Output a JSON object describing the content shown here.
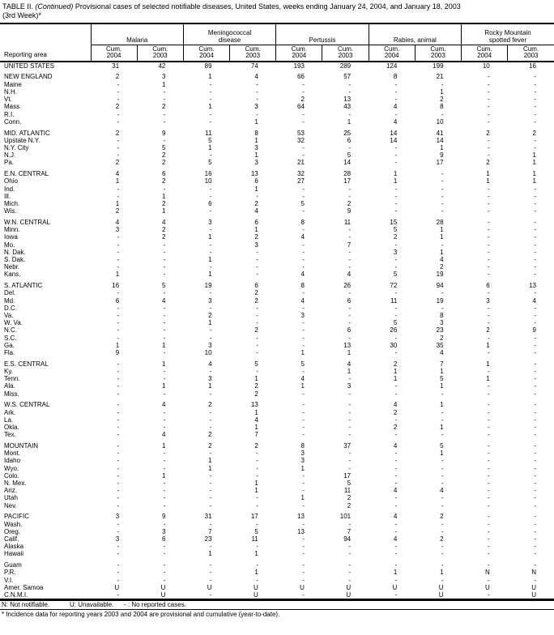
{
  "title": {
    "prefix": "TABLE II.",
    "continued": "(Continued)",
    "rest": "Provisional cases of selected notifiable diseases, United States, weeks ending January 24, 2004, and January 18, 2003",
    "line2": "(3rd Week)*"
  },
  "header": {
    "reporting_area": "Reporting area",
    "groups": [
      {
        "label": "Malaria"
      },
      {
        "label": "Meningococcal disease"
      },
      {
        "label": "Pertussis"
      },
      {
        "label": "Rabies, animal"
      },
      {
        "label": "Rocky Mountain spotted fever"
      }
    ],
    "cum_label": "Cum.",
    "years": [
      "2004",
      "2003",
      "2004",
      "2003",
      "2004",
      "2003",
      "2004",
      "2003",
      "2004",
      "2003"
    ]
  },
  "sections": [
    {
      "rows": [
        {
          "area": "UNITED STATES",
          "values": [
            "31",
            "42",
            "89",
            "74",
            "193",
            "289",
            "124",
            "199",
            "10",
            "16"
          ]
        }
      ]
    },
    {
      "rows": [
        {
          "area": "NEW ENGLAND",
          "values": [
            "2",
            "3",
            "1",
            "4",
            "66",
            "57",
            "8",
            "21",
            "-",
            "-"
          ]
        },
        {
          "area": "Maine",
          "values": [
            "-",
            "1",
            "-",
            "-",
            "-",
            "-",
            "-",
            "-",
            "-",
            "-"
          ]
        },
        {
          "area": "N.H.",
          "values": [
            "-",
            "-",
            "-",
            "-",
            "-",
            "-",
            "-",
            "1",
            "-",
            "-"
          ]
        },
        {
          "area": "Vt.",
          "values": [
            "-",
            "-",
            "-",
            "-",
            "2",
            "13",
            "-",
            "2",
            "-",
            "-"
          ]
        },
        {
          "area": "Mass.",
          "values": [
            "2",
            "2",
            "1",
            "3",
            "64",
            "43",
            "4",
            "8",
            "-",
            "-"
          ]
        },
        {
          "area": "R.I.",
          "values": [
            "-",
            "-",
            "-",
            "-",
            "-",
            "-",
            "-",
            "-",
            "-",
            "-"
          ]
        },
        {
          "area": "Conn.",
          "values": [
            "-",
            "-",
            "-",
            "1",
            "-",
            "1",
            "4",
            "10",
            "-",
            "-"
          ]
        }
      ]
    },
    {
      "rows": [
        {
          "area": "MID. ATLANTIC",
          "values": [
            "2",
            "9",
            "11",
            "8",
            "53",
            "25",
            "14",
            "41",
            "2",
            "2"
          ]
        },
        {
          "area": "Upstate N.Y.",
          "values": [
            "-",
            "-",
            "5",
            "1",
            "32",
            "6",
            "14",
            "14",
            "-",
            "-"
          ]
        },
        {
          "area": "N.Y. City",
          "values": [
            "-",
            "5",
            "1",
            "3",
            "-",
            "-",
            "-",
            "1",
            "-",
            "-"
          ]
        },
        {
          "area": "N.J.",
          "values": [
            "-",
            "2",
            "-",
            "1",
            "-",
            "5",
            "-",
            "9",
            "-",
            "1"
          ]
        },
        {
          "area": "Pa.",
          "values": [
            "2",
            "2",
            "5",
            "3",
            "21",
            "14",
            "-",
            "17",
            "2",
            "1"
          ]
        }
      ]
    },
    {
      "rows": [
        {
          "area": "E.N. CENTRAL",
          "values": [
            "4",
            "6",
            "16",
            "13",
            "32",
            "28",
            "1",
            "-",
            "1",
            "1"
          ]
        },
        {
          "area": "Ohio",
          "values": [
            "1",
            "2",
            "10",
            "6",
            "27",
            "17",
            "1",
            "-",
            "1",
            "1"
          ]
        },
        {
          "area": "Ind.",
          "values": [
            "-",
            "-",
            "-",
            "1",
            "-",
            "-",
            "-",
            "-",
            "-",
            "-"
          ]
        },
        {
          "area": "Ill.",
          "values": [
            "-",
            "1",
            "-",
            "-",
            "-",
            "-",
            "-",
            "-",
            "-",
            "-"
          ]
        },
        {
          "area": "Mich.",
          "values": [
            "1",
            "2",
            "6",
            "2",
            "5",
            "2",
            "-",
            "-",
            "-",
            "-"
          ]
        },
        {
          "area": "Wis.",
          "values": [
            "2",
            "1",
            "-",
            "4",
            "-",
            "9",
            "-",
            "-",
            "-",
            "-"
          ]
        }
      ]
    },
    {
      "rows": [
        {
          "area": "W.N. CENTRAL",
          "values": [
            "4",
            "4",
            "3",
            "6",
            "8",
            "11",
            "15",
            "28",
            "-",
            "-"
          ]
        },
        {
          "area": "Minn.",
          "values": [
            "3",
            "2",
            "-",
            "1",
            "-",
            "-",
            "5",
            "1",
            "-",
            "-"
          ]
        },
        {
          "area": "Iowa",
          "values": [
            "-",
            "2",
            "1",
            "2",
            "4",
            "-",
            "2",
            "1",
            "-",
            "-"
          ]
        },
        {
          "area": "Mo.",
          "values": [
            "-",
            "-",
            "-",
            "3",
            "-",
            "7",
            "-",
            "-",
            "-",
            "-"
          ]
        },
        {
          "area": "N. Dak.",
          "values": [
            "-",
            "-",
            "-",
            "-",
            "-",
            "-",
            "3",
            "1",
            "-",
            "-"
          ]
        },
        {
          "area": "S. Dak.",
          "values": [
            "-",
            "-",
            "1",
            "-",
            "-",
            "-",
            "-",
            "4",
            "-",
            "-"
          ]
        },
        {
          "area": "Nebr.",
          "values": [
            "-",
            "-",
            "-",
            "-",
            "-",
            "-",
            "-",
            "2",
            "-",
            "-"
          ]
        },
        {
          "area": "Kans.",
          "values": [
            "1",
            "-",
            "1",
            "-",
            "4",
            "4",
            "5",
            "19",
            "-",
            "-"
          ]
        }
      ]
    },
    {
      "rows": [
        {
          "area": "S. ATLANTIC",
          "values": [
            "16",
            "5",
            "19",
            "6",
            "8",
            "26",
            "72",
            "94",
            "6",
            "13"
          ]
        },
        {
          "area": "Del.",
          "values": [
            "-",
            "-",
            "-",
            "2",
            "-",
            "-",
            "-",
            "-",
            "-",
            "-"
          ]
        },
        {
          "area": "Md.",
          "values": [
            "6",
            "4",
            "3",
            "2",
            "4",
            "6",
            "11",
            "19",
            "3",
            "4"
          ]
        },
        {
          "area": "D.C.",
          "values": [
            "-",
            "-",
            "-",
            "-",
            "-",
            "-",
            "-",
            "-",
            "-",
            "-"
          ]
        },
        {
          "area": "Va.",
          "values": [
            "-",
            "-",
            "2",
            "-",
            "3",
            "-",
            "-",
            "8",
            "-",
            "-"
          ]
        },
        {
          "area": "W. Va.",
          "values": [
            "-",
            "-",
            "1",
            "-",
            "-",
            "-",
            "5",
            "3",
            "-",
            "-"
          ]
        },
        {
          "area": "N.C.",
          "values": [
            "-",
            "-",
            "-",
            "2",
            "-",
            "6",
            "26",
            "23",
            "2",
            "9"
          ]
        },
        {
          "area": "S.C.",
          "values": [
            "-",
            "-",
            "-",
            "-",
            "-",
            "-",
            "-",
            "2",
            "-",
            "-"
          ]
        },
        {
          "area": "Ga.",
          "values": [
            "1",
            "1",
            "3",
            "-",
            "-",
            "13",
            "30",
            "35",
            "1",
            "-"
          ]
        },
        {
          "area": "Fla.",
          "values": [
            "9",
            "-",
            "10",
            "-",
            "1",
            "1",
            "-",
            "4",
            "-",
            "-"
          ]
        }
      ]
    },
    {
      "rows": [
        {
          "area": "E.S. CENTRAL",
          "values": [
            "-",
            "1",
            "4",
            "5",
            "5",
            "4",
            "2",
            "7",
            "1",
            "-"
          ]
        },
        {
          "area": "Ky.",
          "values": [
            "-",
            "-",
            "-",
            "-",
            "-",
            "1",
            "1",
            "1",
            "-",
            "-"
          ]
        },
        {
          "area": "Tenn.",
          "values": [
            "-",
            "-",
            "3",
            "1",
            "4",
            "-",
            "1",
            "5",
            "1",
            "-"
          ]
        },
        {
          "area": "Ala.",
          "values": [
            "-",
            "1",
            "1",
            "2",
            "1",
            "3",
            "-",
            "1",
            "-",
            "-"
          ]
        },
        {
          "area": "Miss.",
          "values": [
            "-",
            "-",
            "-",
            "2",
            "-",
            "-",
            "-",
            "-",
            "-",
            "-"
          ]
        }
      ]
    },
    {
      "rows": [
        {
          "area": "W.S. CENTRAL",
          "values": [
            "-",
            "4",
            "2",
            "13",
            "-",
            "-",
            "4",
            "1",
            "-",
            "-"
          ]
        },
        {
          "area": "Ark.",
          "values": [
            "-",
            "-",
            "-",
            "1",
            "-",
            "-",
            "2",
            "-",
            "-",
            "-"
          ]
        },
        {
          "area": "La.",
          "values": [
            "-",
            "-",
            "-",
            "4",
            "-",
            "-",
            "-",
            "-",
            "-",
            "-"
          ]
        },
        {
          "area": "Okla.",
          "values": [
            "-",
            "-",
            "-",
            "1",
            "-",
            "-",
            "2",
            "1",
            "-",
            "-"
          ]
        },
        {
          "area": "Tex.",
          "values": [
            "-",
            "4",
            "2",
            "7",
            "-",
            "-",
            "-",
            "-",
            "-",
            "-"
          ]
        }
      ]
    },
    {
      "rows": [
        {
          "area": "MOUNTAIN",
          "values": [
            "-",
            "1",
            "2",
            "2",
            "8",
            "37",
            "4",
            "5",
            "-",
            "-"
          ]
        },
        {
          "area": "Mont.",
          "values": [
            "-",
            "-",
            "-",
            "-",
            "3",
            "-",
            "-",
            "1",
            "-",
            "-"
          ]
        },
        {
          "area": "Idaho",
          "values": [
            "-",
            "-",
            "1",
            "-",
            "3",
            "-",
            "-",
            "-",
            "-",
            "-"
          ]
        },
        {
          "area": "Wyo.",
          "values": [
            "-",
            "-",
            "1",
            "-",
            "1",
            "-",
            "-",
            "-",
            "-",
            "-"
          ]
        },
        {
          "area": "Colo.",
          "values": [
            "-",
            "1",
            "-",
            "-",
            "-",
            "17",
            "-",
            "-",
            "-",
            "-"
          ]
        },
        {
          "area": "N. Mex.",
          "values": [
            "-",
            "-",
            "-",
            "1",
            "-",
            "5",
            "-",
            "-",
            "-",
            "-"
          ]
        },
        {
          "area": "Ariz.",
          "values": [
            "-",
            "-",
            "-",
            "1",
            "-",
            "11",
            "4",
            "4",
            "-",
            "-"
          ]
        },
        {
          "area": "Utah",
          "values": [
            "-",
            "-",
            "-",
            "-",
            "1",
            "2",
            "-",
            "-",
            "-",
            "-"
          ]
        },
        {
          "area": "Nev.",
          "values": [
            "-",
            "-",
            "-",
            "-",
            "-",
            "2",
            "-",
            "-",
            "-",
            "-"
          ]
        }
      ]
    },
    {
      "rows": [
        {
          "area": "PACIFIC",
          "values": [
            "3",
            "9",
            "31",
            "17",
            "13",
            "101",
            "4",
            "2",
            "-",
            "-"
          ]
        },
        {
          "area": "Wash.",
          "values": [
            "-",
            "-",
            "-",
            "-",
            "-",
            "-",
            "-",
            "-",
            "-",
            "-"
          ]
        },
        {
          "area": "Oreg.",
          "values": [
            "-",
            "3",
            "7",
            "5",
            "13",
            "7",
            "-",
            "-",
            "-",
            "-"
          ]
        },
        {
          "area": "Calif.",
          "values": [
            "3",
            "6",
            "23",
            "11",
            "-",
            "94",
            "4",
            "2",
            "-",
            "-"
          ]
        },
        {
          "area": "Alaska",
          "values": [
            "-",
            "-",
            "-",
            "-",
            "-",
            "-",
            "-",
            "-",
            "-",
            "-"
          ]
        },
        {
          "area": "Hawaii",
          "values": [
            "-",
            "-",
            "1",
            "1",
            "-",
            "-",
            "-",
            "-",
            "-",
            "-"
          ]
        }
      ]
    },
    {
      "rows": [
        {
          "area": "Guam",
          "values": [
            "-",
            "-",
            "-",
            "-",
            "-",
            "-",
            "-",
            "-",
            "-",
            "-"
          ]
        },
        {
          "area": "P.R.",
          "values": [
            "-",
            "-",
            "-",
            "1",
            "-",
            "-",
            "1",
            "1",
            "N",
            "N"
          ]
        },
        {
          "area": "V.I.",
          "values": [
            "-",
            "-",
            "-",
            "-",
            "-",
            "-",
            "-",
            "-",
            "-",
            "-"
          ]
        },
        {
          "area": "Amer. Samoa",
          "values": [
            "U",
            "U",
            "U",
            "U",
            "U",
            "U",
            "U",
            "U",
            "U",
            "U"
          ]
        },
        {
          "area": "C.N.M.I.",
          "values": [
            "-",
            "U",
            "-",
            "U",
            "-",
            "U",
            "-",
            "U",
            "-",
            "U"
          ]
        }
      ]
    }
  ],
  "footnotes": {
    "legend": [
      "N: Not notifiable.",
      "U: Unavailable.",
      "- : No reported cases."
    ],
    "note": "* Incidence data for reporting years 2003 and 2004 are provisional and cumulative (year-to-date)."
  }
}
